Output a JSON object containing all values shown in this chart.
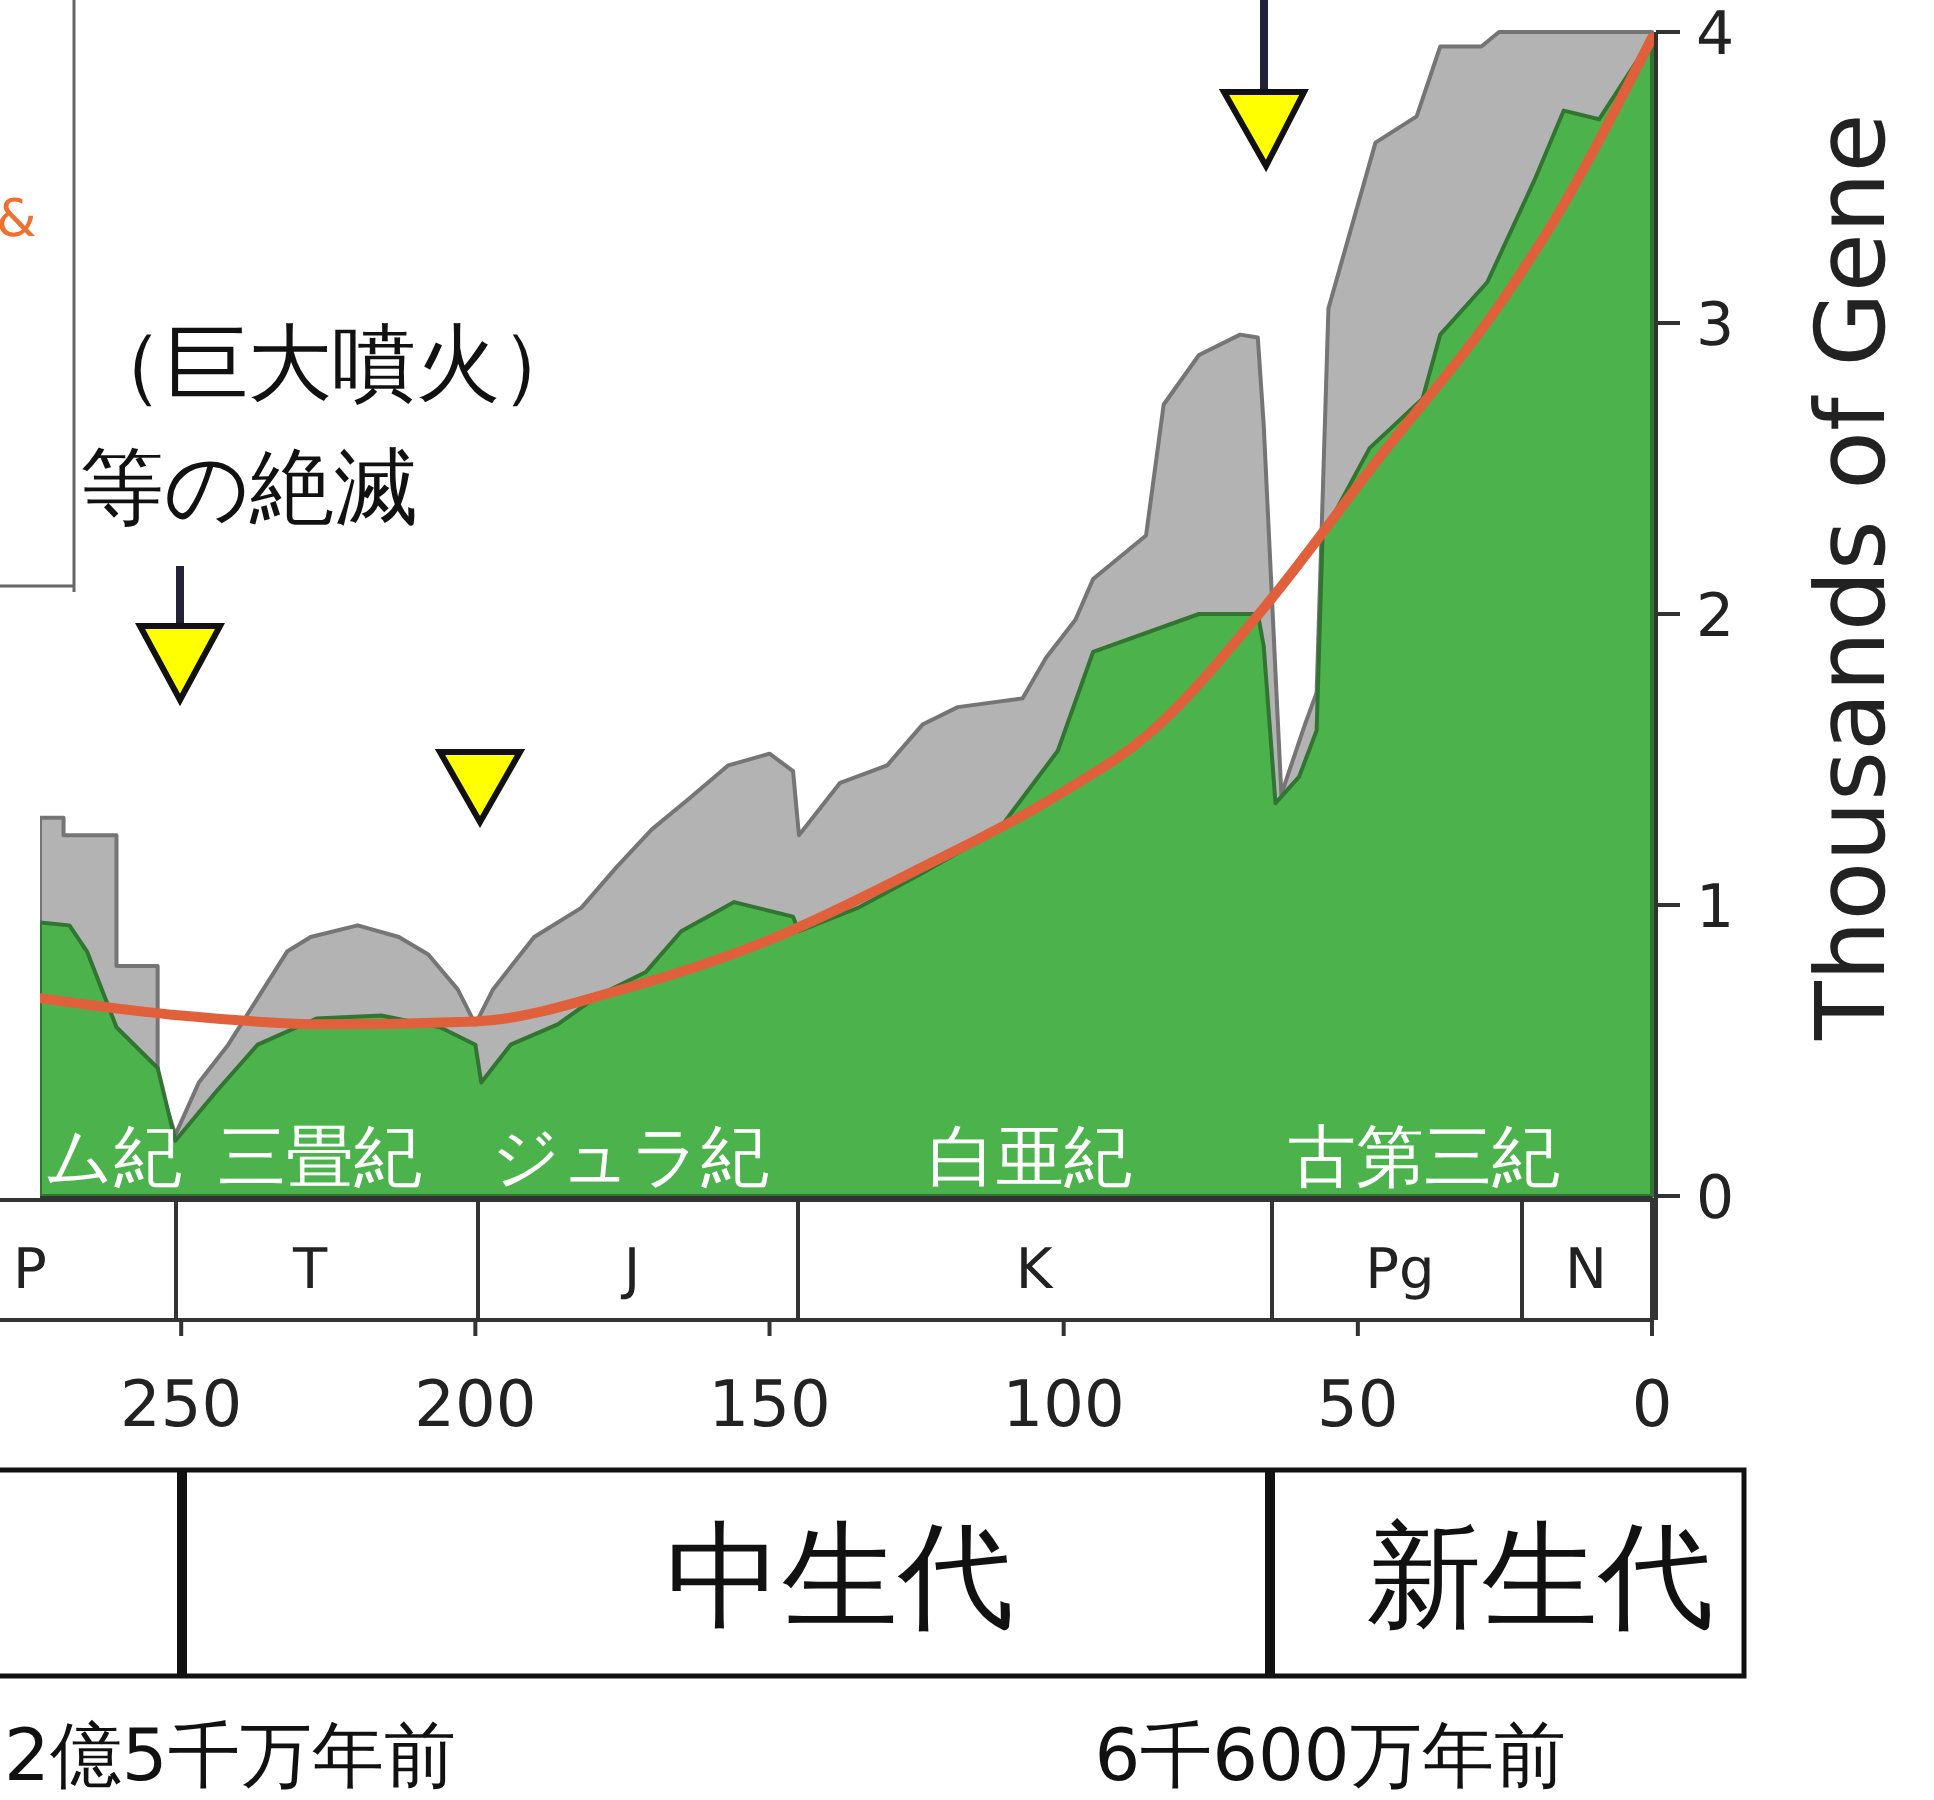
{
  "chart_data": {
    "type": "area",
    "ylabel": "Thousands of Gene",
    "xlim": [
      274,
      0
    ],
    "ylim": [
      0,
      4
    ],
    "xticks": [
      250,
      200,
      150,
      100,
      50,
      0
    ],
    "yticks": [
      0,
      1,
      2,
      3,
      4
    ],
    "grid": false,
    "series": [
      {
        "color": "#b3b3b3",
        "x": [
          274,
          270,
          270,
          261,
          261,
          254,
          254,
          251,
          247,
          242,
          237,
          232,
          228,
          220,
          213,
          208,
          203,
          200,
          197,
          190,
          182,
          176,
          170,
          164,
          157,
          150,
          146,
          145,
          138,
          130,
          124,
          118,
          107,
          103,
          98,
          95,
          86,
          83,
          77,
          70,
          67,
          66,
          64,
          63,
          62,
          59,
          57,
          55,
          47,
          40,
          36,
          29,
          26,
          0
        ],
        "values": [
          1.3,
          1.3,
          1.24,
          1.24,
          0.79,
          0.79,
          0.4,
          0.21,
          0.39,
          0.52,
          0.68,
          0.84,
          0.89,
          0.93,
          0.89,
          0.83,
          0.71,
          0.59,
          0.71,
          0.89,
          0.99,
          1.13,
          1.26,
          1.36,
          1.48,
          1.52,
          1.46,
          1.24,
          1.42,
          1.48,
          1.62,
          1.68,
          1.71,
          1.85,
          1.98,
          2.12,
          2.27,
          2.72,
          2.89,
          2.96,
          2.95,
          2.65,
          1.8,
          1.38,
          1.44,
          1.62,
          1.73,
          3.05,
          3.62,
          3.71,
          3.95,
          3.95,
          4.0,
          4.0
        ]
      },
      {
        "color": "#4cb34c",
        "x": [
          274,
          269,
          266,
          261,
          254,
          251,
          244,
          237,
          227,
          216,
          206,
          200,
          199,
          194,
          186,
          179,
          171,
          165,
          156,
          146,
          145,
          135,
          124,
          111,
          101,
          95,
          77,
          67,
          66,
          64,
          60,
          57,
          56,
          48,
          39,
          36,
          28,
          20,
          15,
          9,
          0
        ],
        "values": [
          0.94,
          0.93,
          0.84,
          0.58,
          0.44,
          0.19,
          0.36,
          0.52,
          0.61,
          0.62,
          0.58,
          0.52,
          0.39,
          0.52,
          0.59,
          0.69,
          0.77,
          0.91,
          1.01,
          0.96,
          0.91,
          0.99,
          1.11,
          1.26,
          1.53,
          1.87,
          2.0,
          2.0,
          1.89,
          1.35,
          1.44,
          1.6,
          2.27,
          2.57,
          2.74,
          2.96,
          3.14,
          3.49,
          3.73,
          3.7,
          3.98
        ]
      },
      {
        "type": "line",
        "color": "#e0603c",
        "x": [
          274,
          250,
          225,
          200,
          175,
          150,
          125,
          100,
          86,
          66,
          47,
          25,
          17,
          0
        ],
        "values": [
          0.68,
          0.62,
          0.59,
          0.6,
          0.71,
          0.88,
          1.12,
          1.39,
          1.58,
          2.02,
          2.52,
          3.09,
          3.34,
          3.98
        ]
      }
    ],
    "annotations": [
      "（巨大噴火）",
      "等の絶滅",
      "&",
      "ム紀",
      "三畳紀",
      "ジュラ紀",
      "白亜紀",
      "古第三紀",
      "中生代",
      "新生代",
      "2億5千万年前",
      "6千600万年前",
      "P",
      "T",
      "J",
      "K",
      "Pg",
      "N"
    ]
  }
}
